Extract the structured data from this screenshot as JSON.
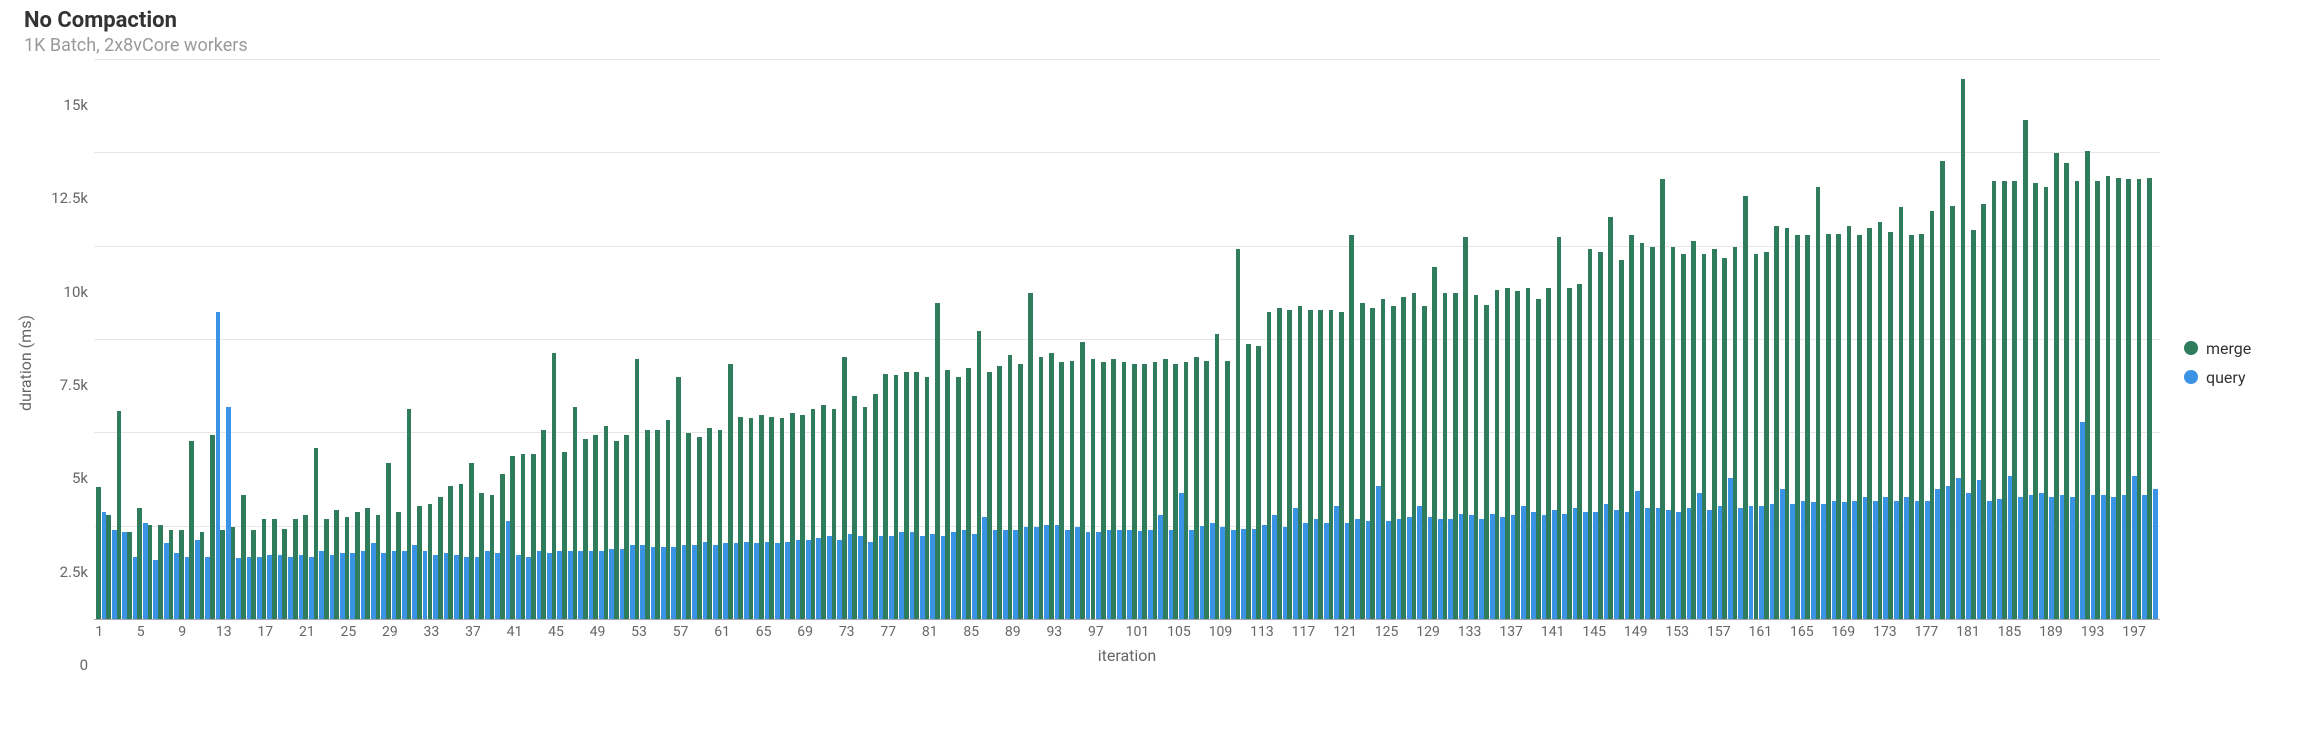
{
  "title": "No Compaction",
  "subtitle": "1K Batch, 2x8vCore workers",
  "chart": {
    "type": "bar-grouped",
    "x_label": "iteration",
    "y_label": "duration (ms)",
    "ylim": [
      0,
      15000
    ],
    "ytick_step": 2500,
    "yticks": [
      {
        "v": 0,
        "label": "0"
      },
      {
        "v": 2500,
        "label": "2.5k"
      },
      {
        "v": 5000,
        "label": "5k"
      },
      {
        "v": 7500,
        "label": "7.5k"
      },
      {
        "v": 10000,
        "label": "10k"
      },
      {
        "v": 12500,
        "label": "12.5k"
      },
      {
        "v": 15000,
        "label": "15k"
      }
    ],
    "x_start": 1,
    "x_end": 199,
    "xtick_step": 4,
    "background_color": "#ffffff",
    "grid_color": "#e6e6e6",
    "axis_color": "#aaaaaa",
    "text_color": "#666666",
    "title_color": "#333333",
    "subtitle_color": "#9a9a9a",
    "title_fontsize": 22,
    "subtitle_fontsize": 18,
    "axis_label_fontsize": 16,
    "tick_fontsize": 15,
    "bar_group_gap_ratio": 0.08,
    "bar_width_ratio": 0.46,
    "series": [
      {
        "name": "merge",
        "color": "#2f7d5d",
        "values": [
          3550,
          2800,
          5600,
          2350,
          3000,
          2550,
          2550,
          2400,
          2400,
          4800,
          2350,
          4950,
          2400,
          2500,
          3350,
          2400,
          2700,
          2700,
          2450,
          2700,
          2800,
          4600,
          2700,
          2950,
          2750,
          2900,
          3000,
          2800,
          4200,
          2900,
          5650,
          3050,
          3100,
          3300,
          3600,
          3650,
          4200,
          3400,
          3350,
          3900,
          4400,
          4450,
          4450,
          5100,
          7150,
          4500,
          5700,
          4850,
          4950,
          5200,
          4800,
          4950,
          7000,
          5100,
          5100,
          5350,
          6500,
          5000,
          4900,
          5150,
          5100,
          6850,
          5450,
          5400,
          5500,
          5450,
          5400,
          5550,
          5500,
          5650,
          5750,
          5650,
          7050,
          6000,
          5700,
          6050,
          6600,
          6550,
          6650,
          6650,
          6500,
          8500,
          6700,
          6500,
          6750,
          7750,
          6650,
          6800,
          7100,
          6850,
          8750,
          7050,
          7150,
          6900,
          6950,
          7450,
          7000,
          6900,
          7000,
          6900,
          6850,
          6850,
          6900,
          7000,
          6850,
          6900,
          7050,
          6950,
          7650,
          6950,
          9950,
          7400,
          7350,
          8250,
          8350,
          8300,
          8400,
          8300,
          8300,
          8300,
          8250,
          10300,
          8500,
          8350,
          8600,
          8400,
          8650,
          8750,
          8400,
          9450,
          8750,
          8750,
          10250,
          8700,
          8450,
          8850,
          8900,
          8800,
          8900,
          8600,
          8900,
          10250,
          8900,
          9000,
          9950,
          9850,
          10800,
          9650,
          10300,
          10100,
          10000,
          11800,
          10000,
          9800,
          10150,
          9800,
          9950,
          9700,
          10000,
          11350,
          9800,
          9850,
          10550,
          10500,
          10300,
          10300,
          11600,
          10350,
          10350,
          10550,
          10300,
          10500,
          10650,
          10400,
          11050,
          10300,
          10350,
          10950,
          12300,
          11100,
          14500,
          10450,
          11150,
          11750,
          11750,
          11750,
          13400,
          11700,
          11600,
          12500,
          12250,
          11750,
          12550,
          11750,
          11900,
          11850,
          11800,
          11800,
          11850
        ]
      },
      {
        "name": "query",
        "color": "#3b93e6",
        "values": [
          2900,
          2400,
          2350,
          1700,
          2600,
          1600,
          2050,
          1800,
          1700,
          2150,
          1700,
          8250,
          5700,
          1650,
          1700,
          1700,
          1750,
          1750,
          1700,
          1750,
          1700,
          1850,
          1750,
          1800,
          1800,
          1850,
          2050,
          1800,
          1850,
          1850,
          2000,
          1850,
          1750,
          1800,
          1750,
          1700,
          1700,
          1850,
          1800,
          2650,
          1750,
          1700,
          1850,
          1800,
          1850,
          1850,
          1850,
          1850,
          1850,
          1900,
          1900,
          2000,
          2000,
          1950,
          1950,
          1950,
          2000,
          2000,
          2100,
          2000,
          2050,
          2050,
          2100,
          2050,
          2100,
          2050,
          2100,
          2150,
          2150,
          2200,
          2250,
          2150,
          2300,
          2250,
          2100,
          2250,
          2250,
          2350,
          2350,
          2250,
          2300,
          2250,
          2350,
          2400,
          2300,
          2750,
          2400,
          2400,
          2400,
          2500,
          2500,
          2550,
          2550,
          2400,
          2500,
          2350,
          2350,
          2400,
          2400,
          2400,
          2380,
          2400,
          2800,
          2400,
          3400,
          2400,
          2530,
          2600,
          2500,
          2400,
          2450,
          2450,
          2550,
          2800,
          2500,
          3000,
          2600,
          2700,
          2600,
          3050,
          2600,
          2700,
          2650,
          3600,
          2650,
          2700,
          2750,
          3050,
          2750,
          2700,
          2700,
          2850,
          2800,
          2700,
          2850,
          2750,
          2800,
          3050,
          2900,
          2800,
          2950,
          2850,
          3000,
          2900,
          2900,
          3100,
          2950,
          2900,
          3450,
          3000,
          3000,
          2950,
          2900,
          3000,
          3400,
          2950,
          3050,
          3800,
          3000,
          3050,
          3050,
          3100,
          3500,
          3100,
          3200,
          3150,
          3100,
          3200,
          3150,
          3200,
          3300,
          3200,
          3300,
          3200,
          3300,
          3200,
          3200,
          3500,
          3600,
          3800,
          3400,
          3750,
          3200,
          3250,
          3850,
          3300,
          3350,
          3400,
          3300,
          3350,
          3300,
          5300,
          3350,
          3350,
          3300,
          3350,
          3850,
          3350,
          3500
        ]
      }
    ],
    "legend": {
      "position": "right-middle",
      "swatch_shape": "circle",
      "item_fontsize": 16,
      "items": [
        {
          "label": "merge",
          "color": "#2f7d5d"
        },
        {
          "label": "query",
          "color": "#3b93e6"
        }
      ]
    }
  }
}
